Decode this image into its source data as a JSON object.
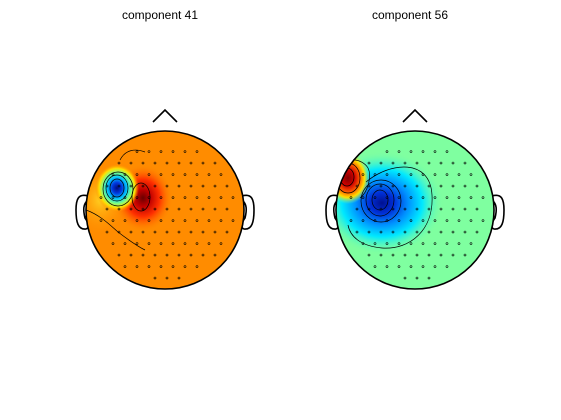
{
  "figure": {
    "panels": [
      {
        "title": "component 41",
        "background_color": "#ff8c00",
        "blobs": [
          {
            "name": "frontal-left-positive-red",
            "color": "#8b0000"
          },
          {
            "name": "frontal-left-negative-blue",
            "color": "#0018a8"
          },
          {
            "name": "left-temporal-yellow",
            "color": "#f0e640"
          }
        ]
      },
      {
        "title": "component 56",
        "background_color": "#7fffa0",
        "blobs": [
          {
            "name": "frontal-left-positive-red",
            "color": "#a00000"
          },
          {
            "name": "frontal-negative-blue",
            "color": "#0028c8"
          }
        ]
      }
    ]
  }
}
